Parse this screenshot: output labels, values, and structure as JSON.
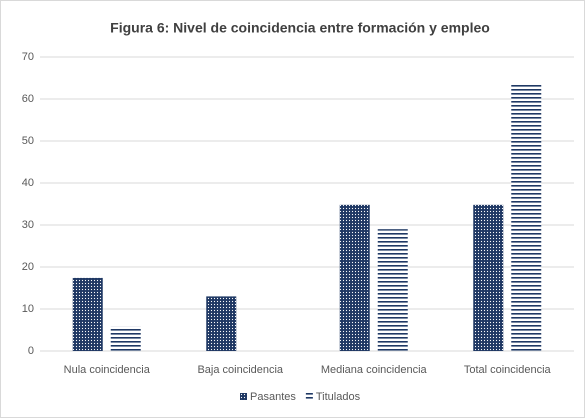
{
  "chart_data": {
    "type": "bar",
    "title": "Figura 6: Nivel de coincidencia entre formación y empleo",
    "categories": [
      "Nula coincidencia",
      "Baja coincidencia",
      "Mediana coincidencia",
      "Total coincidencia"
    ],
    "series": [
      {
        "name": "Pasantes",
        "color": "#1f3864",
        "values": [
          17.4,
          13,
          34.8,
          34.8
        ]
      },
      {
        "name": "Titulados",
        "color": "#1f3864",
        "values": [
          5.8,
          0,
          29,
          63.8
        ]
      }
    ],
    "ylim": [
      0,
      70
    ],
    "yticks": [
      0,
      10,
      20,
      30,
      40,
      50,
      60,
      70
    ],
    "grid": true
  }
}
